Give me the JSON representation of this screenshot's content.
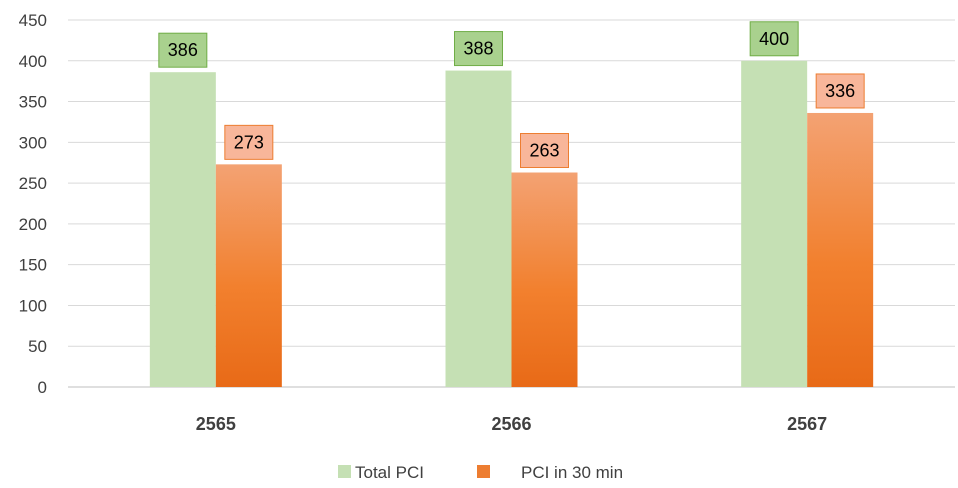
{
  "chart_data": {
    "type": "bar",
    "categories": [
      "2565",
      "2566",
      "2567"
    ],
    "series": [
      {
        "name": "Total PCI",
        "values": [
          386,
          388,
          400
        ],
        "color": "#c5e0b4",
        "label_fill": "#a9d18e",
        "label_stroke": "#70ad47"
      },
      {
        "name": "PCI in 30 min",
        "values": [
          273,
          263,
          336
        ],
        "color": "#f07a28",
        "label_fill": "#f8b69a",
        "label_stroke": "#ed7d31"
      }
    ],
    "ylim": [
      0,
      450
    ],
    "yticks": [
      "0",
      "50",
      "100",
      "150",
      "200",
      "250",
      "300",
      "350",
      "400",
      "450"
    ],
    "grid": true,
    "legend_position": "bottom"
  }
}
